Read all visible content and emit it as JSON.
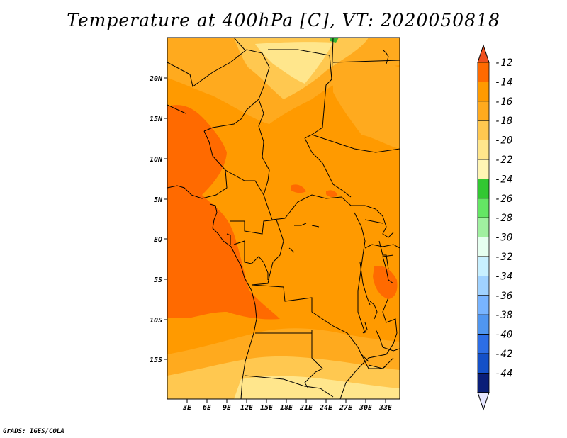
{
  "title": "Temperature at 400hPa [C], VT: 2020050818",
  "credit": "GrADS: IGES/COLA",
  "map": {
    "lat_labels": [
      "20N",
      "15N",
      "10N",
      "5N",
      "EQ",
      "5S",
      "10S",
      "15S"
    ],
    "lon_labels": [
      "3E",
      "6E",
      "9E",
      "12E",
      "15E",
      "18E",
      "21E",
      "24E",
      "27E",
      "30E",
      "33E"
    ],
    "extent": {
      "lon_min": 0,
      "lon_max": 35,
      "lat_min": -20,
      "lat_max": 25
    }
  },
  "colorbar": {
    "labels": [
      "-12",
      "-14",
      "-16",
      "-18",
      "-20",
      "-22",
      "-24",
      "-26",
      "-28",
      "-30",
      "-32",
      "-34",
      "-36",
      "-38",
      "-40",
      "-42",
      "-44"
    ],
    "colors": [
      "#f0501e",
      "#ff6a00",
      "#ff9a00",
      "#ffaa1e",
      "#ffc850",
      "#ffe68c",
      "#fff5b4",
      "#32c832",
      "#64e664",
      "#a0f0a0",
      "#e6fff0",
      "#c8f0ff",
      "#a0d2ff",
      "#78b4ff",
      "#5096f0",
      "#2d6ee6",
      "#1450c8",
      "#0a1e78",
      "#e6e6ff"
    ]
  },
  "palette": {
    "t_-12": "#f0501e",
    "t_-14": "#ff6a00",
    "t_-16": "#ff9a00",
    "t_-18": "#ffaa1e",
    "t_-20": "#ffc850",
    "t_-22": "#ffe68c",
    "green": "#32b432"
  }
}
